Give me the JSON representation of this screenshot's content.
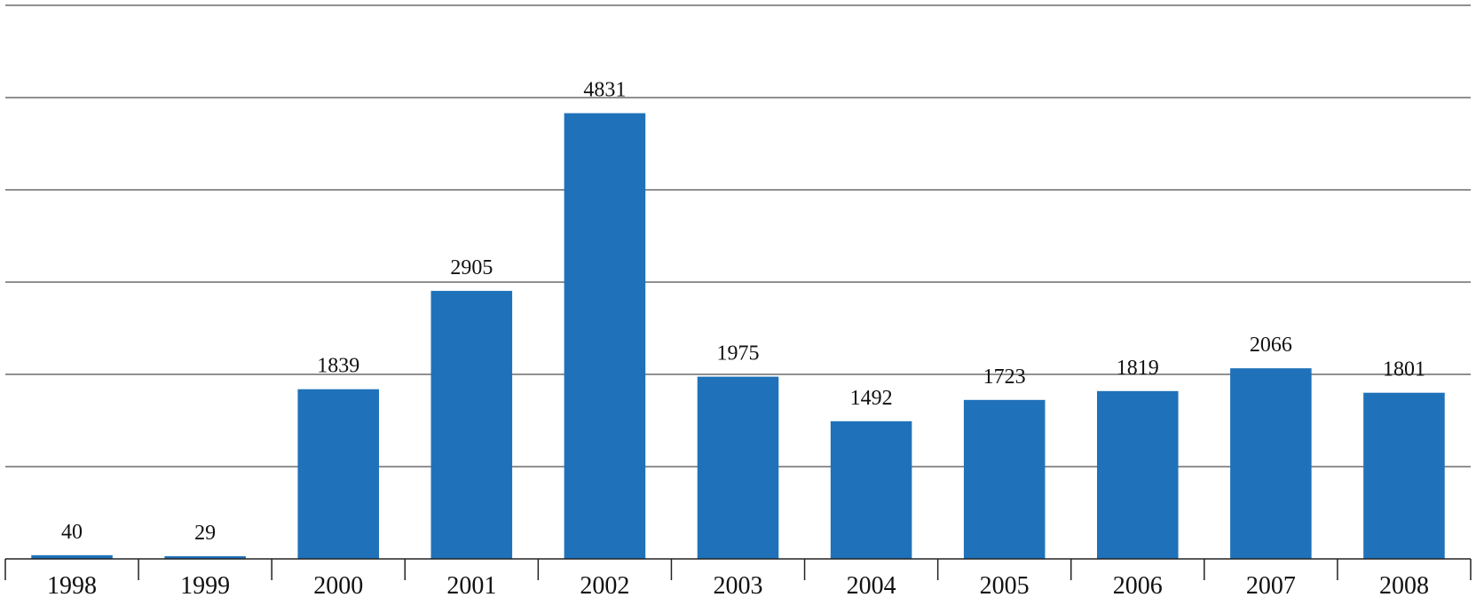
{
  "chart_data": {
    "type": "bar",
    "categories": [
      "1998",
      "1999",
      "2000",
      "2001",
      "2002",
      "2003",
      "2004",
      "2005",
      "2006",
      "2007",
      "2008"
    ],
    "values": [
      40,
      29,
      1839,
      2905,
      4831,
      1975,
      1492,
      1723,
      1819,
      2066,
      1801
    ],
    "title": "",
    "xlabel": "",
    "ylabel": "",
    "ylim": [
      0,
      6000
    ],
    "grid": true,
    "legend": "none",
    "bar_color": "#1f72b9"
  }
}
